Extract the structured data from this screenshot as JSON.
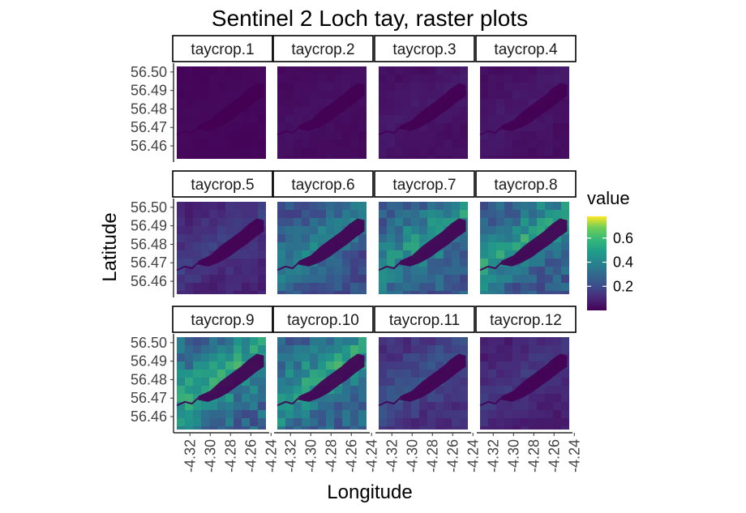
{
  "chart_data": {
    "type": "heatmap",
    "title": "Sentinel 2 Loch tay, raster plots",
    "xlabel": "Longitude",
    "ylabel": "Latitude",
    "panels": [
      {
        "label": "taycrop.1",
        "level": 0.02
      },
      {
        "label": "taycrop.2",
        "level": 0.04
      },
      {
        "label": "taycrop.3",
        "level": 0.06
      },
      {
        "label": "taycrop.4",
        "level": 0.06
      },
      {
        "label": "taycrop.5",
        "level": 0.16
      },
      {
        "label": "taycrop.6",
        "level": 0.38
      },
      {
        "label": "taycrop.7",
        "level": 0.45
      },
      {
        "label": "taycrop.8",
        "level": 0.48
      },
      {
        "label": "taycrop.9",
        "level": 0.52
      },
      {
        "label": "taycrop.10",
        "level": 0.5
      },
      {
        "label": "taycrop.11",
        "level": 0.22
      },
      {
        "label": "taycrop.12",
        "level": 0.14
      }
    ],
    "x_ticks": [
      "-4.32",
      "-4.30",
      "-4.28",
      "-4.26",
      "-4.24"
    ],
    "y_ticks": [
      "56.50",
      "56.49",
      "56.48",
      "56.47",
      "56.46"
    ],
    "xlim": [
      -4.333,
      -4.245
    ],
    "ylim": [
      56.453,
      56.503
    ],
    "legend": {
      "title": "value",
      "ticks": [
        "0.6",
        "0.4",
        "0.2"
      ],
      "range": [
        0.0,
        0.78
      ],
      "colormap": "viridis",
      "placement": "right"
    },
    "colors": {
      "water": "#440154",
      "low": "#46327e",
      "high": "#fde725"
    }
  }
}
